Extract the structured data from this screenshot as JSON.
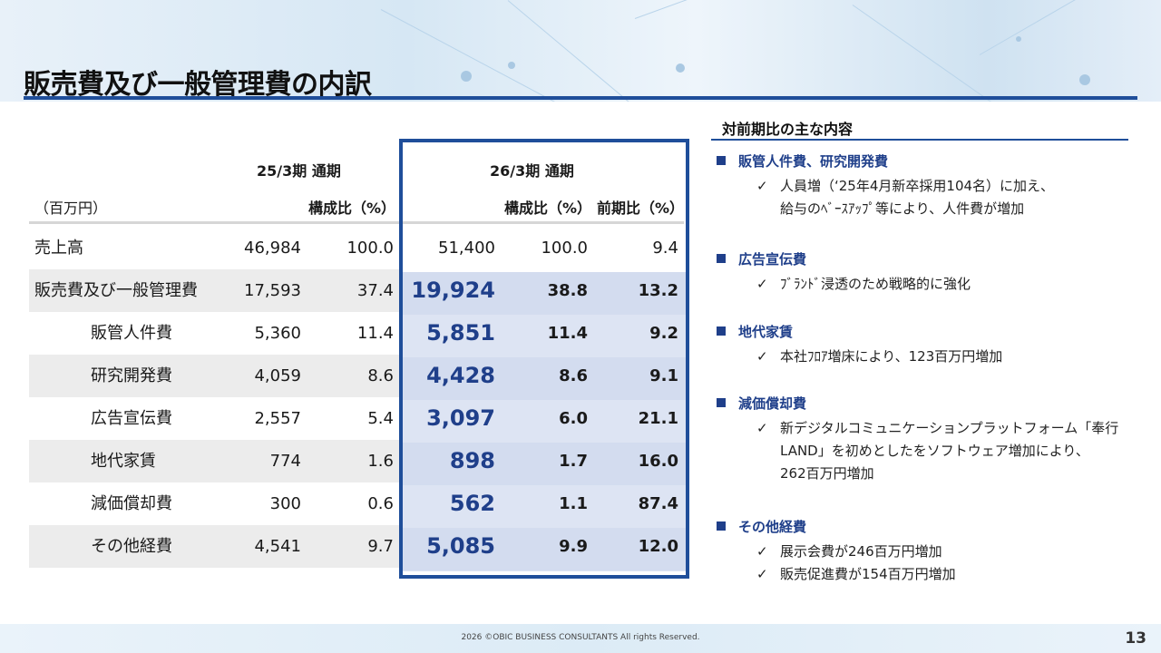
{
  "title": "販売費及び一般管理費の内訳",
  "page_number": "13",
  "copyright": "2026 ©OBIC BUSINESS CONSULTANTS All rights Reserved.",
  "table": {
    "period_prev": "25/3期 通期",
    "period_cur": "26/3期 通期",
    "unit": "（百万円）",
    "col_ratio_prev": "構成比（%）",
    "col_ratio_cur": "構成比（%）",
    "col_yoy": "前期比（%）",
    "rows": [
      {
        "name": "売上高",
        "prev": "46,984",
        "prev_ratio": "100.0",
        "cur": "51,400",
        "cur_ratio": "100.0",
        "yoy": "9.4"
      },
      {
        "name": "販売費及び一般管理費",
        "prev": "17,593",
        "prev_ratio": "37.4",
        "cur": "19,924",
        "cur_ratio": "38.8",
        "yoy": "13.2"
      },
      {
        "name": "販管人件費",
        "prev": "5,360",
        "prev_ratio": "11.4",
        "cur": "5,851",
        "cur_ratio": "11.4",
        "yoy": "9.2"
      },
      {
        "name": "研究開発費",
        "prev": "4,059",
        "prev_ratio": "8.6",
        "cur": "4,428",
        "cur_ratio": "8.6",
        "yoy": "9.1"
      },
      {
        "name": "広告宣伝費",
        "prev": "2,557",
        "prev_ratio": "5.4",
        "cur": "3,097",
        "cur_ratio": "6.0",
        "yoy": "21.1"
      },
      {
        "name": "地代家賃",
        "prev": "774",
        "prev_ratio": "1.6",
        "cur": "898",
        "cur_ratio": "1.7",
        "yoy": "16.0"
      },
      {
        "name": "減価償却費",
        "prev": "300",
        "prev_ratio": "0.6",
        "cur": "562",
        "cur_ratio": "1.1",
        "yoy": "87.4"
      },
      {
        "name": "その他経費",
        "prev": "4,541",
        "prev_ratio": "9.7",
        "cur": "5,085",
        "cur_ratio": "9.9",
        "yoy": "12.0"
      }
    ]
  },
  "panel": {
    "title": "対前期比の主な内容",
    "sections": [
      {
        "heading": "販管人件費、研究開発費",
        "lines": [
          "人員増（‘25年4月新卒採用104名）に加え、",
          "給与のﾍﾞｰｽｱｯﾌﾟ等により、人件費が増加"
        ]
      },
      {
        "heading": "広告宣伝費",
        "lines": [
          "ﾌﾞﾗﾝﾄﾞ浸透のため戦略的に強化"
        ]
      },
      {
        "heading": "地代家賃",
        "lines": [
          "本社ﾌﾛｱ増床により、123百万円増加"
        ]
      },
      {
        "heading": "減価償却費",
        "lines": [
          "新デジタルコミュニケーションプラットフォーム「奉行",
          "LAND」を初めとしたをソフトウェア増加により、",
          "262百万円増加"
        ]
      },
      {
        "heading": "その他経費",
        "lines": [
          "展示会費が246百万円増加",
          "販売促進費が154百万円増加"
        ]
      }
    ],
    "bullet": "■",
    "check": "✓"
  }
}
